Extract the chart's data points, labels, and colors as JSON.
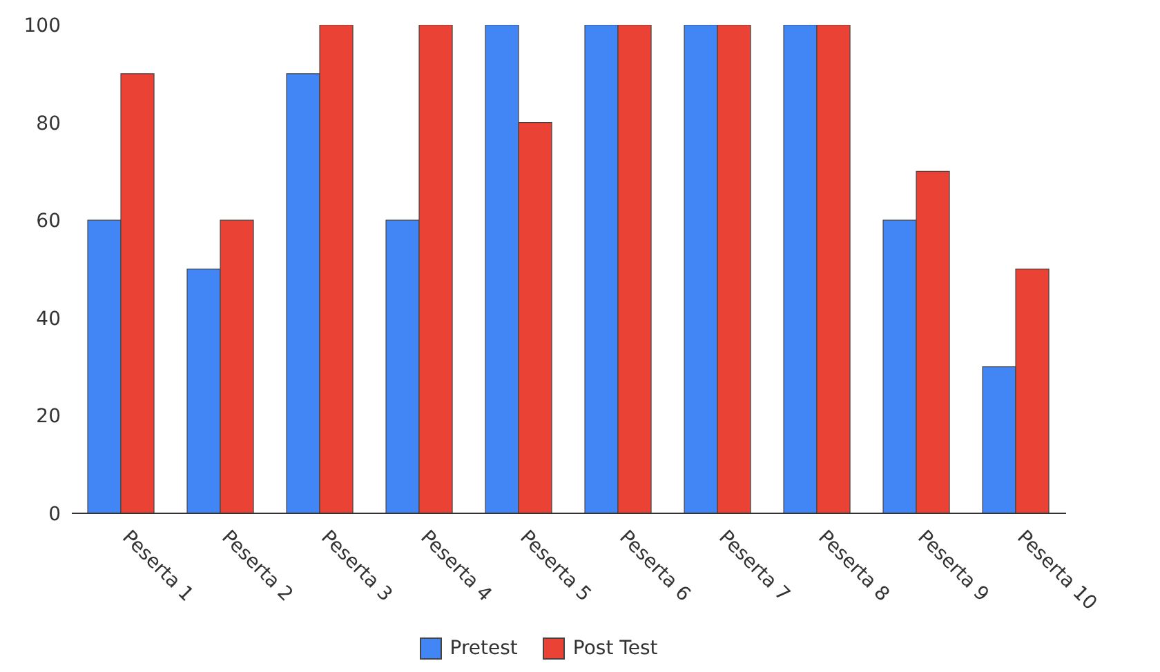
{
  "chart_data": {
    "type": "bar",
    "categories": [
      "Peserta 1",
      "Peserta 2",
      "Peserta 3",
      "Peserta 4",
      "Peserta 5",
      "Peserta 6",
      "Peserta 7",
      "Peserta 8",
      "Peserta 9",
      "Peserta 10"
    ],
    "series": [
      {
        "name": "Pretest",
        "color": "#4285f4",
        "values": [
          60,
          50,
          90,
          60,
          100,
          100,
          100,
          100,
          60,
          30
        ]
      },
      {
        "name": "Post Test",
        "color": "#ea4335",
        "values": [
          90,
          60,
          100,
          100,
          80,
          100,
          100,
          100,
          70,
          50
        ]
      }
    ],
    "ylim": [
      0,
      100
    ],
    "yticks": [
      0,
      20,
      40,
      60,
      80,
      100
    ],
    "grid": false,
    "legend": "bottom"
  }
}
